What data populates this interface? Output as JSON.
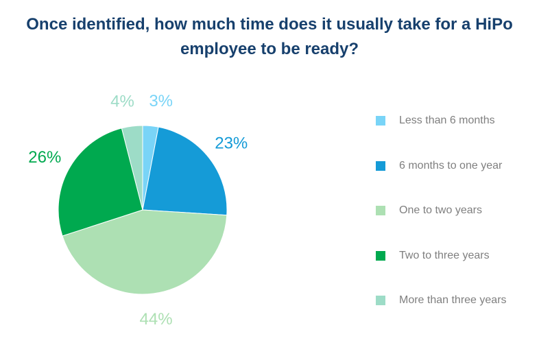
{
  "chart_data": {
    "type": "pie",
    "title_lines": [
      "Once identified, how much time does it usually take for a HiPo",
      "employee to be ready?"
    ],
    "slices": [
      {
        "label": "Less than 6 months",
        "value": 3,
        "display": "3%",
        "color": "#79d4f7"
      },
      {
        "label": "6 months to one year",
        "value": 23,
        "display": "23%",
        "color": "#159bd7"
      },
      {
        "label": "One to two years",
        "value": 44,
        "display": "44%",
        "color": "#ade0b3"
      },
      {
        "label": "Two to three years",
        "value": 26,
        "display": "26%",
        "color": "#00a94f"
      },
      {
        "label": "More than three years",
        "value": 4,
        "display": "4%",
        "color": "#9ddcc7"
      }
    ],
    "legend_position": "right",
    "start_angle_deg": 0,
    "direction": "clockwise"
  }
}
